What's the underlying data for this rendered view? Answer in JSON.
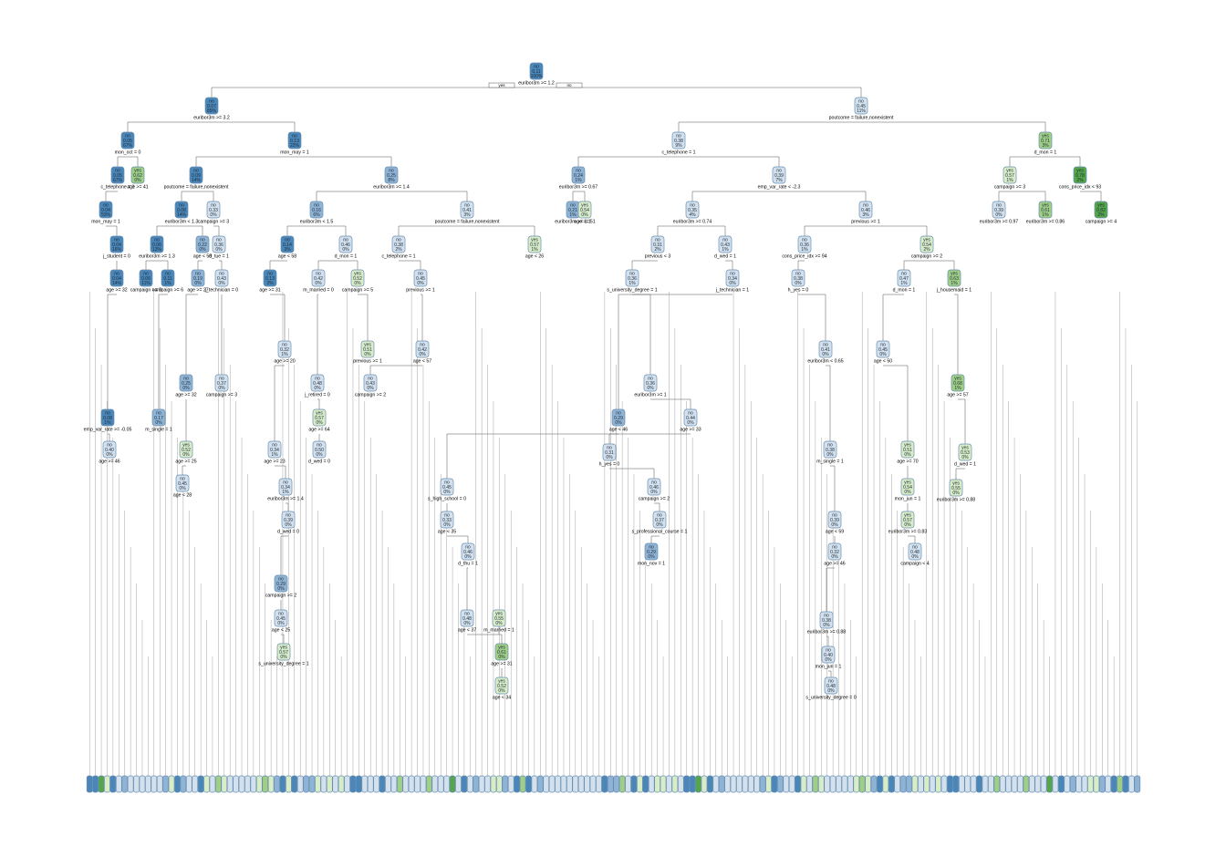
{
  "diagram": {
    "type": "decision-tree",
    "branch_labels": {
      "left": "yes",
      "right": "no"
    },
    "colors": {
      "no_dark": "#4a86b8",
      "no_mid": "#8fb3d5",
      "no_light": "#d3e0ee",
      "yes_light": "#d8ecc8",
      "yes_mid": "#9fcf87",
      "yes_dark": "#55a54a",
      "edge": "#555555"
    },
    "leaf_count": 180,
    "nodes": [
      {
        "id": "root",
        "cls": "no",
        "prob": "0.11",
        "pct": "100%",
        "split": "euribor3m >= 1.2",
        "p": null,
        "d": 0
      },
      {
        "id": "n2",
        "cls": "no",
        "prob": "0.07",
        "pct": "89%",
        "split": "euribor3m >= 3.2",
        "p": "root",
        "d": 1
      },
      {
        "id": "n3",
        "cls": "no",
        "prob": "0.45",
        "pct": "11%",
        "split": "poutcome = failure,nonexistent",
        "p": "root",
        "d": 1
      },
      {
        "id": "n4",
        "cls": "no",
        "prob": "0.05",
        "pct": "67%",
        "split": "mon_oct = 0",
        "p": "n2",
        "d": 2
      },
      {
        "id": "n5",
        "cls": "no",
        "prob": "0.13",
        "pct": "22%",
        "split": "mon_may = 1",
        "p": "n2",
        "d": 2
      },
      {
        "id": "n6",
        "cls": "no",
        "prob": "0.38",
        "pct": "9%",
        "split": "c_telephone = 1",
        "p": "n3",
        "d": 2
      },
      {
        "id": "n7",
        "cls": "yes",
        "prob": "0.71",
        "pct": "3%",
        "split": "d_mon = 1",
        "p": "n3",
        "d": 2
      },
      {
        "id": "n8",
        "cls": "no",
        "prob": "0.05",
        "pct": "67%",
        "split": "c_telephone = 1",
        "p": "n4",
        "d": 3
      },
      {
        "id": "n9",
        "cls": "yes",
        "prob": "0.62",
        "pct": "0%",
        "split": "age >= 41",
        "p": "n4",
        "d": 3
      },
      {
        "id": "n10",
        "cls": "no",
        "prob": "0.09",
        "pct": "14%",
        "split": "poutcome = failure,nonexistent",
        "p": "n5",
        "d": 3
      },
      {
        "id": "n11",
        "cls": "no",
        "prob": "0.25",
        "pct": "8%",
        "split": "euribor3m >= 1.4",
        "p": "n5",
        "d": 3
      },
      {
        "id": "n12",
        "cls": "no",
        "prob": "0.24",
        "pct": "1%",
        "split": "euribor3m >= 0.67",
        "p": "n6",
        "d": 3
      },
      {
        "id": "n13",
        "cls": "no",
        "prob": "0.39",
        "pct": "7%",
        "split": "emp_var_rate < -2.3",
        "p": "n6",
        "d": 3
      },
      {
        "id": "n14",
        "cls": "yes",
        "prob": "0.57",
        "pct": "1%",
        "split": "campaign >= 3",
        "p": "n7",
        "d": 3
      },
      {
        "id": "n15",
        "cls": "yes",
        "prob": "0.78",
        "pct": "2%",
        "split": "cons_price_idx < 93",
        "p": "n7",
        "d": 3
      },
      {
        "id": "n16",
        "cls": "no",
        "prob": "0.04",
        "pct": "53%",
        "split": "mon_may = 1",
        "p": "n8",
        "d": 4
      },
      {
        "id": "n17",
        "cls": "no",
        "prob": "0.08",
        "pct": "14%",
        "split": "euribor3m < 1.3",
        "p": "n10",
        "d": 4
      },
      {
        "id": "n18",
        "cls": "no",
        "prob": "0.33",
        "pct": "0%",
        "split": "campaign >= 3",
        "p": "n10",
        "d": 4
      },
      {
        "id": "n19",
        "cls": "no",
        "prob": "0.16",
        "pct": "6%",
        "split": "euribor3m < 1.5",
        "p": "n11",
        "d": 4
      },
      {
        "id": "n20",
        "cls": "no",
        "prob": "0.41",
        "pct": "3%",
        "split": "poutcome = failure,nonexistent",
        "p": "n11",
        "d": 4
      },
      {
        "id": "n21",
        "cls": "no",
        "prob": "0.21",
        "pct": "1%",
        "split": "euribor3m >= 1.1",
        "p": "n12",
        "d": 4
      },
      {
        "id": "n22",
        "cls": "yes",
        "prob": "0.54",
        "pct": "0%",
        "split": "age >= 51",
        "p": "n12",
        "d": 4
      },
      {
        "id": "n23",
        "cls": "no",
        "prob": "0.35",
        "pct": "4%",
        "split": "euribor3m >= 0.74",
        "p": "n13",
        "d": 4
      },
      {
        "id": "n24",
        "cls": "no",
        "prob": "0.46",
        "pct": "3%",
        "split": "previous >= 1",
        "p": "n13",
        "d": 4
      },
      {
        "id": "n25",
        "cls": "no",
        "prob": "0.39",
        "pct": "0%",
        "split": "euribor3m >= 0.97",
        "p": "n14",
        "d": 4
      },
      {
        "id": "n26",
        "cls": "yes",
        "prob": "0.61",
        "pct": "1%",
        "split": "euribor3m >= 0.86",
        "p": "n14",
        "d": 4
      },
      {
        "id": "n27",
        "cls": "yes",
        "prob": "0.82",
        "pct": "2%",
        "split": "campaign >= 4",
        "p": "n15",
        "d": 4
      },
      {
        "id": "n28",
        "cls": "no",
        "prob": "0.04",
        "pct": "16%",
        "split": "j_student = 0",
        "p": "n16",
        "d": 5
      },
      {
        "id": "n29",
        "cls": "no",
        "prob": "0.06",
        "pct": "13%",
        "split": "euribor3m >= 1.3",
        "p": "n17",
        "d": 5
      },
      {
        "id": "n30",
        "cls": "no",
        "prob": "0.22",
        "pct": "0%",
        "split": "age < 58",
        "p": "n17",
        "d": 5
      },
      {
        "id": "n31",
        "cls": "no",
        "prob": "0.36",
        "pct": "0%",
        "split": "d_tue = 1",
        "p": "n18",
        "d": 5
      },
      {
        "id": "n32",
        "cls": "no",
        "prob": "0.14",
        "pct": "3%",
        "split": "age < 58",
        "p": "n19",
        "d": 5
      },
      {
        "id": "n33",
        "cls": "no",
        "prob": "0.46",
        "pct": "0%",
        "split": "d_mon = 1",
        "p": "n19",
        "d": 5
      },
      {
        "id": "n34",
        "cls": "no",
        "prob": "0.38",
        "pct": "2%",
        "split": "c_telephone = 1",
        "p": "n20",
        "d": 5
      },
      {
        "id": "n35",
        "cls": "yes",
        "prob": "0.57",
        "pct": "1%",
        "split": "age < 26",
        "p": "n20",
        "d": 5
      },
      {
        "id": "n36",
        "cls": "no",
        "prob": "0.31",
        "pct": "2%",
        "split": "previous < 3",
        "p": "n23",
        "d": 5
      },
      {
        "id": "n37",
        "cls": "no",
        "prob": "0.43",
        "pct": "1%",
        "split": "d_wed = 1",
        "p": "n23",
        "d": 5
      },
      {
        "id": "n38",
        "cls": "no",
        "prob": "0.36",
        "pct": "1%",
        "split": "cons_price_idx >= 94",
        "p": "n24",
        "d": 5
      },
      {
        "id": "n39",
        "cls": "yes",
        "prob": "0.54",
        "pct": "2%",
        "split": "campaign >= 2",
        "p": "n24",
        "d": 5
      },
      {
        "id": "n40",
        "cls": "no",
        "prob": "0.04",
        "pct": "14%",
        "split": "age >= 32",
        "p": "n28",
        "d": 6
      },
      {
        "id": "n41",
        "cls": "no",
        "prob": "0.06",
        "pct": "11%",
        "split": "campaign >= 3",
        "p": "n29",
        "d": 6
      },
      {
        "id": "n42",
        "cls": "no",
        "prob": "0.11",
        "pct": "1%",
        "split": "campaign >= 6",
        "p": "n29",
        "d": 6
      },
      {
        "id": "n43",
        "cls": "no",
        "prob": "0.19",
        "pct": "0%",
        "split": "age >= 27",
        "p": "n30",
        "d": 6
      },
      {
        "id": "n44",
        "cls": "no",
        "prob": "0.43",
        "pct": "0%",
        "split": "j_technician = 0",
        "p": "n31",
        "d": 6
      },
      {
        "id": "n45",
        "cls": "no",
        "prob": "0.13",
        "pct": "3%",
        "split": "age >= 31",
        "p": "n32",
        "d": 6
      },
      {
        "id": "n46",
        "cls": "no",
        "prob": "0.42",
        "pct": "0%",
        "split": "m_married = 0",
        "p": "n33",
        "d": 6
      },
      {
        "id": "n47",
        "cls": "yes",
        "prob": "0.52",
        "pct": "0%",
        "split": "campaign >= 5",
        "p": "n33",
        "d": 6
      },
      {
        "id": "n48",
        "cls": "no",
        "prob": "0.45",
        "pct": "0%",
        "split": "previous >= 1",
        "p": "n34",
        "d": 6
      },
      {
        "id": "n49",
        "cls": "no",
        "prob": "0.36",
        "pct": "1%",
        "split": "s_university_degree = 1",
        "p": "n36",
        "d": 6
      },
      {
        "id": "n50",
        "cls": "no",
        "prob": "0.34",
        "pct": "0%",
        "split": "j_technician = 1",
        "p": "n37",
        "d": 6
      },
      {
        "id": "n51",
        "cls": "no",
        "prob": "0.38",
        "pct": "0%",
        "split": "h_yes = 0",
        "p": "n38",
        "d": 6
      },
      {
        "id": "n52",
        "cls": "no",
        "prob": "0.47",
        "pct": "1%",
        "split": "d_mon = 1",
        "p": "n39",
        "d": 6
      },
      {
        "id": "n53",
        "cls": "yes",
        "prob": "0.63",
        "pct": "1%",
        "split": "j_housemaid = 1",
        "p": "n39",
        "d": 6
      },
      {
        "id": "n54",
        "cls": "no",
        "prob": "0.08",
        "pct": "1%",
        "split": "emp_var_rate >= -0.05",
        "p": "n40",
        "d": 7
      },
      {
        "id": "n55",
        "cls": "no",
        "prob": "0.17",
        "pct": "0%",
        "split": "m_single = 1",
        "p": "n42",
        "d": 7
      },
      {
        "id": "n56",
        "cls": "no",
        "prob": "0.25",
        "pct": "0%",
        "split": "age >= 32",
        "p": "n43",
        "d": 7
      },
      {
        "id": "n57",
        "cls": "no",
        "prob": "0.37",
        "pct": "0%",
        "split": "campaign >= 3",
        "p": "n44",
        "d": 7
      },
      {
        "id": "n58",
        "cls": "no",
        "prob": "0.32",
        "pct": "1%",
        "split": "age >= 20",
        "p": "n45",
        "d": 7
      },
      {
        "id": "n59",
        "cls": "no",
        "prob": "0.48",
        "pct": "0%",
        "split": "j_retired = 0",
        "p": "n46",
        "d": 7
      },
      {
        "id": "n60",
        "cls": "yes",
        "prob": "0.51",
        "pct": "0%",
        "split": "previous >= 1",
        "p": "n47",
        "d": 7
      },
      {
        "id": "n61",
        "cls": "no",
        "prob": "0.42",
        "pct": "0%",
        "split": "age < 57",
        "p": "n48",
        "d": 7
      },
      {
        "id": "n62",
        "cls": "no",
        "prob": "0.36",
        "pct": "0%",
        "split": "euribor3m >= 1",
        "p": "n49",
        "d": 7
      },
      {
        "id": "n63",
        "cls": "no",
        "prob": "0.29",
        "pct": "0%",
        "split": "age < 46",
        "p": "n50",
        "d": 7
      },
      {
        "id": "n64",
        "cls": "no",
        "prob": "0.41",
        "pct": "0%",
        "split": "euribor3m < 0.65",
        "p": "n51",
        "d": 7
      },
      {
        "id": "n65",
        "cls": "no",
        "prob": "0.45",
        "pct": "0%",
        "split": "age < 50",
        "p": "n52",
        "d": 7
      },
      {
        "id": "n66",
        "cls": "yes",
        "prob": "0.68",
        "pct": "1%",
        "split": "age >= 57",
        "p": "n53",
        "d": 7
      },
      {
        "id": "n67",
        "cls": "no",
        "prob": "0.40",
        "pct": "0%",
        "split": "age >= 46",
        "p": "n54",
        "d": 8
      },
      {
        "id": "n68",
        "cls": "yes",
        "prob": "0.52",
        "pct": "0%",
        "split": "age >= 25",
        "p": "n56",
        "d": 8
      },
      {
        "id": "n69",
        "cls": "no",
        "prob": "0.34",
        "pct": "1%",
        "split": "age >= 23",
        "p": "n58",
        "d": 8
      },
      {
        "id": "n70",
        "cls": "yes",
        "prob": "0.57",
        "pct": "0%",
        "split": "age >= 64",
        "p": "n59",
        "d": 8
      },
      {
        "id": "n71",
        "cls": "no",
        "prob": "0.43",
        "pct": "0%",
        "split": "campaign >= 2",
        "p": "n61",
        "d": 8
      },
      {
        "id": "n72",
        "cls": "no",
        "prob": "0.44",
        "pct": "0%",
        "split": "age >= 33",
        "p": "n62",
        "d": 8
      },
      {
        "id": "n73",
        "cls": "no",
        "prob": "0.31",
        "pct": "0%",
        "split": "h_yes = 0",
        "p": "n63",
        "d": 8
      },
      {
        "id": "n74",
        "cls": "no",
        "prob": "0.38",
        "pct": "0%",
        "split": "m_single = 1",
        "p": "n64",
        "d": 8
      },
      {
        "id": "n75",
        "cls": "yes",
        "prob": "0.51",
        "pct": "0%",
        "split": "age >= 70",
        "p": "n65",
        "d": 8
      },
      {
        "id": "n76",
        "cls": "yes",
        "prob": "0.53",
        "pct": "0%",
        "split": "d_wed = 1",
        "p": "n66",
        "d": 8
      },
      {
        "id": "n77",
        "cls": "no",
        "prob": "0.45",
        "pct": "0%",
        "split": "age < 28",
        "p": "n68",
        "d": 9
      },
      {
        "id": "n78",
        "cls": "no",
        "prob": "0.34",
        "pct": "1%",
        "split": "euribor3m >= 1.4",
        "p": "n69",
        "d": 9
      },
      {
        "id": "n79",
        "cls": "no",
        "prob": "0.50",
        "pct": "0%",
        "split": "d_wed = 0",
        "p": "n70",
        "d": 9
      },
      {
        "id": "n80",
        "cls": "no",
        "prob": "0.45",
        "pct": "0%",
        "split": "s_high_school = 0",
        "p": "n72",
        "d": 9
      },
      {
        "id": "n81",
        "cls": "no",
        "prob": "0.46",
        "pct": "0%",
        "split": "campaign >= 2",
        "p": "n73",
        "d": 9
      },
      {
        "id": "n82",
        "cls": "no",
        "prob": "0.39",
        "pct": "0%",
        "split": "age < 59",
        "p": "n74",
        "d": 9
      },
      {
        "id": "n83",
        "cls": "yes",
        "prob": "0.54",
        "pct": "0%",
        "split": "mon_jun = 1",
        "p": "n75",
        "d": 9
      },
      {
        "id": "n84",
        "cls": "yes",
        "prob": "0.55",
        "pct": "0%",
        "split": "euribor3m >= 0.88",
        "p": "n76",
        "d": 9
      },
      {
        "id": "n85",
        "cls": "no",
        "prob": "0.39",
        "pct": "0%",
        "split": "d_wed = 0",
        "p": "n78",
        "d": 10
      },
      {
        "id": "n86",
        "cls": "no",
        "prob": "0.33",
        "pct": "0%",
        "split": "age < 35",
        "p": "n80",
        "d": 10
      },
      {
        "id": "n87",
        "cls": "no",
        "prob": "0.37",
        "pct": "0%",
        "split": "s_professional_course = 1",
        "p": "n81",
        "d": 10
      },
      {
        "id": "n88",
        "cls": "no",
        "prob": "0.32",
        "pct": "0%",
        "split": "age >= 46",
        "p": "n82",
        "d": 10
      },
      {
        "id": "n89",
        "cls": "yes",
        "prob": "0.57",
        "pct": "0%",
        "split": "euribor3m >= 0.83",
        "p": "n83",
        "d": 10
      },
      {
        "id": "n90",
        "cls": "no",
        "prob": "0.29",
        "pct": "0%",
        "split": "campaign >= 2",
        "p": "n85",
        "d": 11
      },
      {
        "id": "n91",
        "cls": "no",
        "prob": "0.46",
        "pct": "0%",
        "split": "d_thu = 1",
        "p": "n86",
        "d": 11
      },
      {
        "id": "n92",
        "cls": "no",
        "prob": "0.29",
        "pct": "0%",
        "split": "mon_nov = 1",
        "p": "n87",
        "d": 11
      },
      {
        "id": "n93",
        "cls": "no",
        "prob": "0.38",
        "pct": "0%",
        "split": "euribor3m >= 0.88",
        "p": "n88",
        "d": 11
      },
      {
        "id": "n94",
        "cls": "no",
        "prob": "0.48",
        "pct": "0%",
        "split": "campaign < 4",
        "p": "n89",
        "d": 11
      },
      {
        "id": "n95",
        "cls": "no",
        "prob": "0.45",
        "pct": "0%",
        "split": "age < 25",
        "p": "n90",
        "d": 12
      },
      {
        "id": "n96",
        "cls": "no",
        "prob": "0.48",
        "pct": "0%",
        "split": "age < 37",
        "p": "n91",
        "d": 12
      },
      {
        "id": "n97",
        "cls": "no",
        "prob": "0.40",
        "pct": "0%",
        "split": "mon_jun = 1",
        "p": "n93",
        "d": 12
      },
      {
        "id": "n98",
        "cls": "yes",
        "prob": "0.57",
        "pct": "0%",
        "split": "s_university_degree = 1",
        "p": "n95",
        "d": 13
      },
      {
        "id": "n99",
        "cls": "yes",
        "prob": "0.55",
        "pct": "0%",
        "split": "m_married = 1",
        "p": "n96",
        "d": 13
      },
      {
        "id": "n100",
        "cls": "no",
        "prob": "0.48",
        "pct": "0%",
        "split": "s_university_degree = 0",
        "p": "n97",
        "d": 13
      },
      {
        "id": "n101",
        "cls": "yes",
        "prob": "0.61",
        "pct": "0%",
        "split": "age >= 31",
        "p": "n99",
        "d": 14
      },
      {
        "id": "n102",
        "cls": "yes",
        "prob": "0.52",
        "pct": "0%",
        "split": "age < 34",
        "p": "n101",
        "d": 15
      }
    ]
  }
}
